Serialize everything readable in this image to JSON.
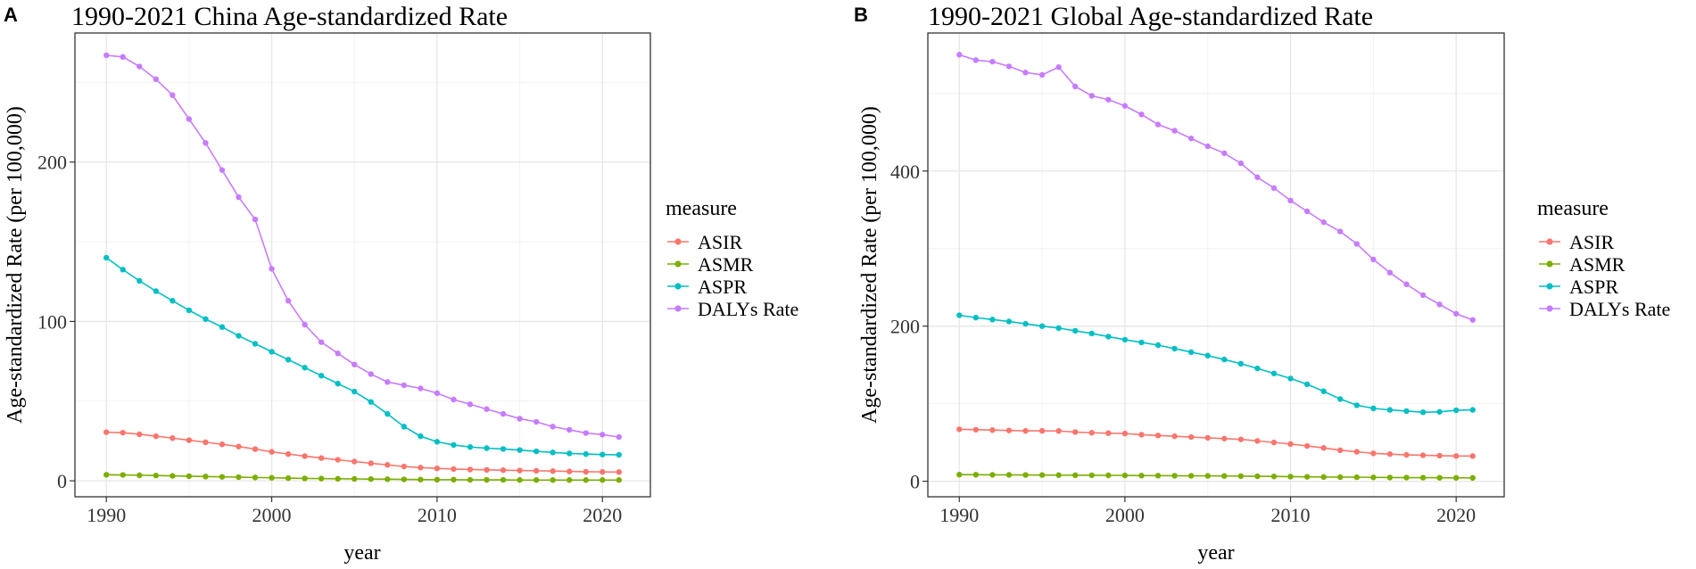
{
  "chart_data": [
    {
      "type": "line",
      "panel": "A",
      "title": "1990-2021 China Age-standardized Rate",
      "xlabel": "year",
      "ylabel": "Age-standardized Rate (per 100,000)",
      "xlim": [
        1988.1,
        2022.9
      ],
      "ylim": [
        -10,
        281
      ],
      "xticks": [
        1990,
        2000,
        2010,
        2020
      ],
      "yticks": [
        0,
        100,
        200
      ],
      "grid": true,
      "legend_title": "measure",
      "x": [
        1990,
        1991,
        1992,
        1993,
        1994,
        1995,
        1996,
        1997,
        1998,
        1999,
        2000,
        2001,
        2002,
        2003,
        2004,
        2005,
        2006,
        2007,
        2008,
        2009,
        2010,
        2011,
        2012,
        2013,
        2014,
        2015,
        2016,
        2017,
        2018,
        2019,
        2020,
        2021
      ],
      "series": [
        {
          "name": "ASIR",
          "color": "#F8766D",
          "values": [
            30.5,
            30.2,
            29.2,
            28.0,
            26.8,
            25.5,
            24.2,
            22.9,
            21.5,
            19.9,
            18.2,
            16.8,
            15.5,
            14.3,
            13.2,
            12.1,
            11.0,
            10.0,
            9.0,
            8.3,
            7.8,
            7.4,
            7.1,
            6.9,
            6.7,
            6.5,
            6.3,
            6.1,
            5.9,
            5.7,
            5.6,
            5.5
          ]
        },
        {
          "name": "ASMR",
          "color": "#7CAE00",
          "values": [
            3.8,
            3.7,
            3.5,
            3.3,
            3.1,
            2.9,
            2.7,
            2.5,
            2.3,
            2.1,
            1.9,
            1.7,
            1.5,
            1.4,
            1.3,
            1.2,
            1.1,
            1.0,
            0.9,
            0.8,
            0.7,
            0.7,
            0.6,
            0.6,
            0.6,
            0.5,
            0.5,
            0.5,
            0.5,
            0.5,
            0.5,
            0.5
          ]
        },
        {
          "name": "ASPR",
          "color": "#00BFC4",
          "values": [
            140.0,
            132.5,
            125.5,
            119.0,
            113.0,
            107.0,
            101.5,
            96.5,
            91.0,
            86.0,
            81.0,
            76.0,
            71.0,
            66.0,
            61.0,
            56.0,
            49.5,
            42.0,
            34.0,
            28.0,
            24.5,
            22.5,
            21.2,
            20.5,
            20.0,
            19.3,
            18.5,
            17.8,
            17.2,
            16.8,
            16.5,
            16.3
          ]
        },
        {
          "name": "DALYs Rate",
          "color": "#C77CFF",
          "values": [
            267.0,
            266.0,
            260.0,
            252.0,
            242.0,
            227.0,
            212.0,
            195.0,
            178.0,
            164.0,
            133.0,
            113.0,
            98.0,
            87.0,
            80.0,
            73.0,
            67.0,
            62.0,
            60.0,
            58.0,
            55.0,
            51.0,
            48.0,
            45.0,
            42.0,
            39.0,
            37.0,
            34.0,
            32.0,
            30.0,
            29.0,
            27.5
          ]
        }
      ]
    },
    {
      "type": "line",
      "panel": "B",
      "title": "1990-2021 Global Age-standardized Rate",
      "xlabel": "year",
      "ylabel": "Age-standardized Rate (per 100,000)",
      "xlim": [
        1988.1,
        2022.9
      ],
      "ylim": [
        -20,
        578
      ],
      "xticks": [
        1990,
        2000,
        2010,
        2020
      ],
      "yticks": [
        0,
        200,
        400
      ],
      "grid": true,
      "legend_title": "measure",
      "x": [
        1990,
        1991,
        1992,
        1993,
        1994,
        1995,
        1996,
        1997,
        1998,
        1999,
        2000,
        2001,
        2002,
        2003,
        2004,
        2005,
        2006,
        2007,
        2008,
        2009,
        2010,
        2011,
        2012,
        2013,
        2014,
        2015,
        2016,
        2017,
        2018,
        2019,
        2020,
        2021
      ],
      "series": [
        {
          "name": "ASIR",
          "color": "#F8766D",
          "values": [
            67.0,
            66.5,
            66.0,
            65.5,
            65.0,
            65.0,
            64.8,
            63.5,
            62.5,
            62.0,
            61.5,
            60.0,
            59.0,
            58.0,
            57.0,
            56.0,
            55.0,
            54.0,
            52.0,
            50.0,
            48.0,
            45.5,
            43.0,
            40.0,
            38.0,
            36.0,
            35.0,
            34.0,
            33.5,
            33.0,
            32.5,
            32.5
          ]
        },
        {
          "name": "ASMR",
          "color": "#7CAE00",
          "values": [
            8.5,
            8.4,
            8.3,
            8.2,
            8.1,
            8.0,
            7.9,
            7.8,
            7.7,
            7.6,
            7.5,
            7.3,
            7.2,
            7.1,
            7.0,
            6.9,
            6.8,
            6.6,
            6.4,
            6.2,
            6.0,
            5.7,
            5.5,
            5.3,
            5.2,
            5.0,
            4.8,
            4.7,
            4.6,
            4.5,
            4.4,
            4.3
          ]
        },
        {
          "name": "ASPR",
          "color": "#00BFC4",
          "values": [
            214.0,
            211.0,
            208.5,
            206.0,
            203.0,
            200.0,
            197.5,
            194.0,
            190.5,
            186.5,
            182.5,
            179.0,
            175.5,
            171.0,
            166.5,
            162.0,
            157.0,
            151.5,
            145.5,
            139.0,
            132.5,
            125.0,
            116.0,
            106.0,
            98.0,
            94.0,
            92.0,
            90.5,
            89.0,
            89.5,
            91.5,
            92.0
          ]
        },
        {
          "name": "DALYs Rate",
          "color": "#C77CFF",
          "values": [
            550.0,
            543.0,
            541.0,
            535.0,
            527.0,
            524.0,
            534.0,
            509.0,
            497.0,
            492.0,
            484.0,
            473.0,
            460.0,
            452.0,
            442.0,
            432.0,
            423.0,
            410.0,
            392.0,
            378.0,
            362.0,
            348.0,
            334.0,
            322.0,
            306.0,
            286.0,
            269.0,
            254.0,
            240.0,
            228.0,
            216.0,
            208.0
          ]
        }
      ]
    }
  ]
}
